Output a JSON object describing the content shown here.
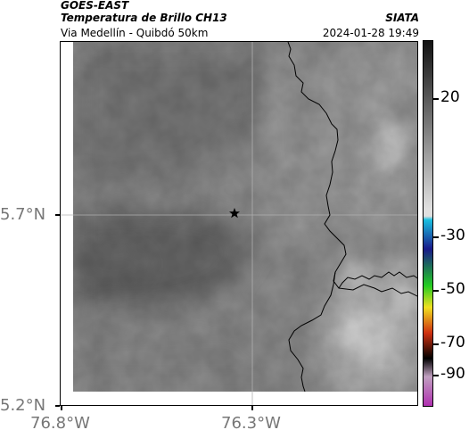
{
  "header": {
    "agency": "GOES-EAST",
    "product": "Temperatura de Brillo CH13",
    "source": "SIATA",
    "region": "Via Medellín - Quibdó 50km",
    "datetime": "2024-01-28 19:49"
  },
  "map": {
    "lat_labels": [
      "5.7°N",
      "5.2°N"
    ],
    "lon_labels": [
      "76.8°W",
      "76.3°W"
    ],
    "marker": "star-marker",
    "colors": {
      "background_gray": "#8f8f8f",
      "dark_gray": "#6e6e6e",
      "light_gray": "#c4c4c4",
      "border_line": "#000000"
    }
  },
  "colorbar": {
    "labels": [
      "20",
      "-30",
      "-50",
      "-70",
      "-90"
    ],
    "stops": [
      "#121212",
      "#e0e0e0",
      "#1ac0e0",
      "#1a1a8a",
      "#22cc22",
      "#f0e020",
      "#d03010",
      "#000000",
      "#c0a0c0",
      "#b030b0"
    ]
  }
}
